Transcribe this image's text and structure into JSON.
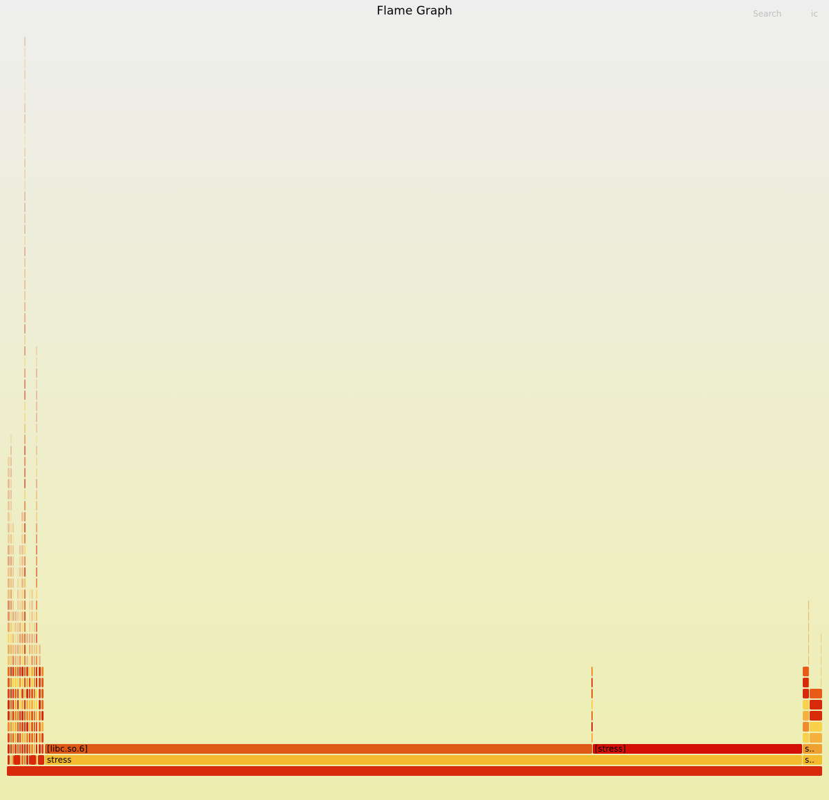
{
  "header": {
    "title": "Flame Graph",
    "search_label": "Search",
    "ic_label": "ic"
  },
  "colors": {
    "background_top": "#eeeeee",
    "background_bottom": "#eeeeb0",
    "root": "#d62a0a",
    "stress": "#f5bb30",
    "libc": "#de5816",
    "stress_bracket": "#d40f05"
  },
  "chart_data": {
    "type": "flame",
    "title": "Flame Graph",
    "frames": [
      {
        "name": "",
        "label": "",
        "depth": 0,
        "start": 0.0,
        "width": 1.0,
        "color": "#d62a0a"
      },
      {
        "name": "stress",
        "label": "stress",
        "depth": 1,
        "start": 0.0466,
        "width": 0.9415,
        "color": "#f5bb30"
      },
      {
        "name": "[libc.so.6]",
        "label": "[libc.so.6]",
        "depth": 2,
        "start": 0.0466,
        "width": 0.7374,
        "color": "#de5816"
      },
      {
        "name": "[stress]",
        "label": "[stress]",
        "depth": 2,
        "start": 0.7374,
        "width": 0.2635,
        "color": "#d40f05"
      },
      {
        "name": "s..",
        "label": "s..",
        "depth": 1,
        "start": 0.9885,
        "width": 0.0226,
        "color": "#f5bb30"
      },
      {
        "name": "s..",
        "label": "s..",
        "depth": 2,
        "start": 0.9885,
        "width": 0.0226,
        "color": "#f0a030"
      }
    ]
  }
}
